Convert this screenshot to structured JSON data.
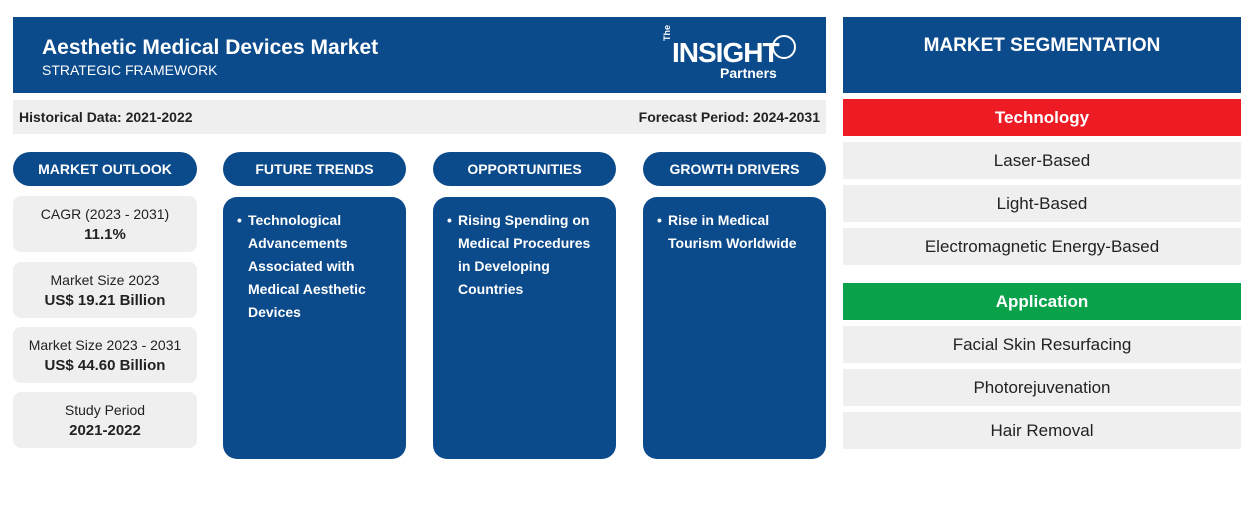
{
  "header": {
    "title": "Aesthetic Medical Devices Market",
    "subtitle": "STRATEGIC FRAMEWORK",
    "logo": {
      "the": "The",
      "brand": "INSIGHT",
      "partners": "Partners"
    }
  },
  "infobar": {
    "historical": "Historical Data: 2021-2022",
    "forecast": "Forecast Period: 2024-2031"
  },
  "columns": {
    "outlook": "MARKET OUTLOOK",
    "trends": "FUTURE TRENDS",
    "opportunities": "OPPORTUNITIES",
    "drivers": "GROWTH DRIVERS"
  },
  "outlook": [
    {
      "label": "CAGR (2023 - 2031)",
      "value": "11.1%"
    },
    {
      "label": "Market Size 2023",
      "value": "US$ 19.21 Billion"
    },
    {
      "label": "Market Size 2023 - 2031",
      "value": "US$ 44.60 Billion"
    },
    {
      "label": "Study Period",
      "value": "2021-2022"
    }
  ],
  "trends": {
    "bullet": "•",
    "text": "Technological Advancements Associated with Medical Aesthetic Devices"
  },
  "opportunities": {
    "bullet": "•",
    "text": "Rising Spending on Medical Procedures in Developing Countries"
  },
  "drivers": {
    "bullet": "•",
    "text": "Rise in Medical Tourism Worldwide"
  },
  "segmentation": {
    "title": "MARKET SEGMENTATION",
    "technology": {
      "label": "Technology",
      "color": "#ed1c24",
      "items": [
        "Laser-Based",
        "Light-Based",
        "Electromagnetic Energy-Based"
      ]
    },
    "application": {
      "label": "Application",
      "color": "#0aa14b",
      "items": [
        "Facial Skin Resurfacing",
        "Photorejuvenation",
        "Hair Removal"
      ]
    }
  },
  "colors": {
    "navy": "#0b4a8b",
    "panel_gray": "#efefef"
  }
}
